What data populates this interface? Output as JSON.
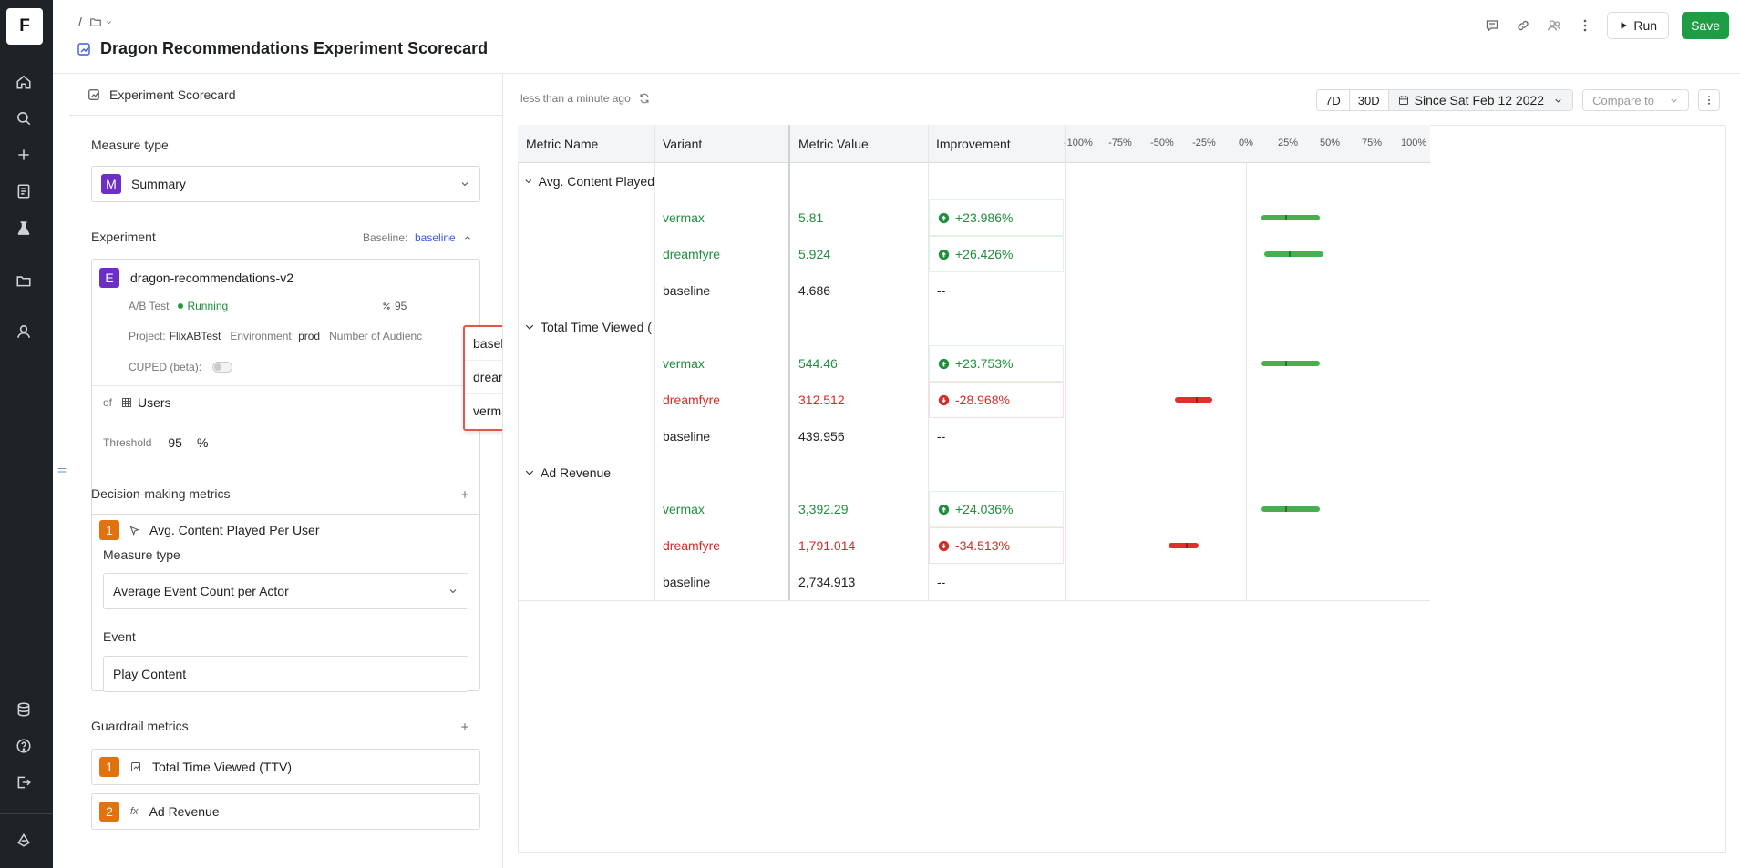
{
  "rail": {
    "logo": "F",
    "top_icons": [
      "home-icon",
      "search-icon",
      "plus-icon",
      "notebook-icon",
      "experiment-icon",
      "folder-icon",
      "user-icon"
    ],
    "bottom_icons": [
      "database-icon",
      "help-icon",
      "logout-icon",
      "brand-icon"
    ]
  },
  "header": {
    "breadcrumb_sep": "/",
    "title": "Dragon Recommendations Experiment Scorecard",
    "run_label": "Run",
    "save_label": "Save"
  },
  "panel": {
    "head_label": "Experiment Scorecard",
    "measure_type_label": "Measure type",
    "measure_type_badge": "M",
    "measure_type_value": "Summary",
    "experiment_label": "Experiment",
    "baseline_label": "Baseline:",
    "baseline_value": "baseline",
    "experiment": {
      "badge": "E",
      "name": "dragon-recommendations-v2",
      "type": "A/B Test",
      "status": "Running",
      "confidence_partial": "95",
      "project_label": "Project:",
      "project": "FlixABTest",
      "environment_label": "Environment:",
      "environment": "prod",
      "audience_label": "Number of Audienc",
      "cuped_label": "CUPED (beta):"
    },
    "of_label": "of",
    "of_value": "Users",
    "threshold_label": "Threshold",
    "threshold_value": "95",
    "threshold_unit": "%",
    "decision_label": "Decision-making metrics",
    "decision_metric": {
      "index": "1",
      "name": "Avg. Content Played Per User",
      "measure_type_label": "Measure type",
      "measure_type_value": "Average Event Count per Actor",
      "event_label": "Event",
      "event_value": "Play Content"
    },
    "guardrail_label": "Guardrail metrics",
    "guardrails": [
      {
        "index": "1",
        "name": "Total Time Viewed (TTV)"
      },
      {
        "index": "2",
        "name": "Ad Revenue"
      }
    ],
    "baseline_options": [
      "baseline",
      "dreamfyre",
      "vermax"
    ]
  },
  "results": {
    "updated": "less than a minute ago",
    "range_7d": "7D",
    "range_30d": "30D",
    "range_since": "Since Sat Feb 12 2022",
    "compare_placeholder": "Compare to",
    "columns": [
      "Metric Name",
      "Variant",
      "Metric Value",
      "Improvement"
    ],
    "ticks": [
      "-100%",
      "-75%",
      "-50%",
      "-25%",
      "0%",
      "25%",
      "50%",
      "75%",
      "100%"
    ],
    "groups": [
      {
        "metric": "Avg. Content Played",
        "rows": [
          {
            "variant": "vermax",
            "value": "5.81",
            "improvement": "+23.986%",
            "tone": "green",
            "ci_low": 9,
            "ci_high": 44,
            "point": 24
          },
          {
            "variant": "dreamfyre",
            "value": "5.924",
            "improvement": "+26.426%",
            "tone": "green",
            "ci_low": 11,
            "ci_high": 46,
            "point": 26
          },
          {
            "variant": "baseline",
            "value": "4.686",
            "improvement": "--",
            "tone": "neutral"
          }
        ]
      },
      {
        "metric": "Total Time Viewed (",
        "rows": [
          {
            "variant": "vermax",
            "value": "544.46",
            "improvement": "+23.753%",
            "tone": "green",
            "ci_low": 9,
            "ci_high": 44,
            "point": 24
          },
          {
            "variant": "dreamfyre",
            "value": "312.512",
            "improvement": "-28.968%",
            "tone": "red",
            "ci_low": -42,
            "ci_high": -20,
            "point": -29
          },
          {
            "variant": "baseline",
            "value": "439.956",
            "improvement": "--",
            "tone": "neutral"
          }
        ]
      },
      {
        "metric": "Ad Revenue",
        "rows": [
          {
            "variant": "vermax",
            "value": "3,392.29",
            "improvement": "+24.036%",
            "tone": "green",
            "ci_low": 9,
            "ci_high": 44,
            "point": 24
          },
          {
            "variant": "dreamfyre",
            "value": "1,791.014",
            "improvement": "-34.513%",
            "tone": "red",
            "ci_low": -46,
            "ci_high": -28,
            "point": -35
          },
          {
            "variant": "baseline",
            "value": "2,734.913",
            "improvement": "--",
            "tone": "neutral"
          }
        ]
      }
    ]
  },
  "colors": {
    "positive": "#1f8f3e",
    "negative": "#d52b26",
    "bar_positive": "#44b04f",
    "bar_negative": "#e0302b",
    "save": "#1f9d44",
    "badge_purple": "#6b2fc4",
    "badge_orange": "#e2720d"
  }
}
